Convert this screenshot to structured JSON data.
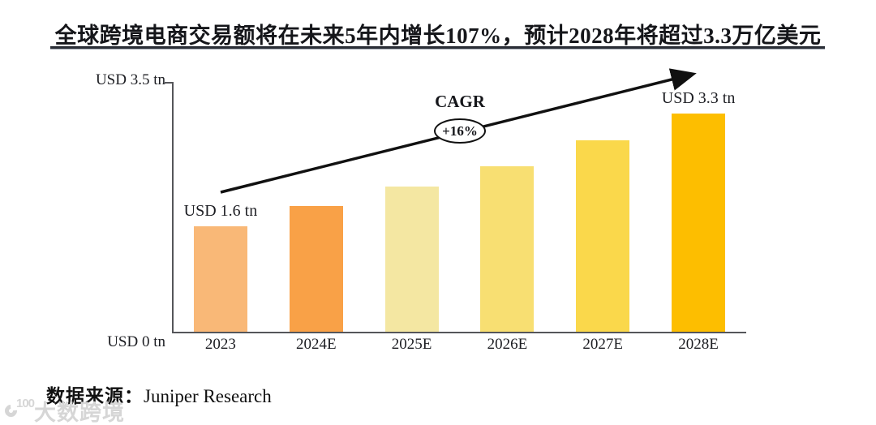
{
  "title": {
    "text": "全球跨境电商交易额将在未来5年内增长107%，预计2028年将超过3.3万亿美元"
  },
  "chart_data": {
    "type": "bar",
    "title": "全球跨境电商交易额将在未来5年内增长107%，预计2028年将超过3.3万亿美元",
    "categories": [
      "2023",
      "2024E",
      "2025E",
      "2026E",
      "2027E",
      "2028E"
    ],
    "values": [
      1.6,
      1.9,
      2.2,
      2.5,
      2.9,
      3.3
    ],
    "unit": "USD trillion",
    "ylim": [
      0,
      3.5
    ],
    "grid": false,
    "y_axis_top_label": "USD 3.5 tn",
    "y_axis_bottom_label": "USD 0 tn",
    "bar_labels": [
      "USD 1.6 tn",
      "",
      "",
      "",
      "",
      "USD 3.3 tn"
    ],
    "bar_colors": [
      "#F9B877",
      "#F9A147",
      "#F4E7A2",
      "#F8DF72",
      "#FAD84B",
      "#FDBE00"
    ],
    "annotation": {
      "label": "CAGR",
      "badge": "+16%"
    },
    "arrow_color": "#111111"
  },
  "source": {
    "prefix": "数据来源：",
    "name": "Juniper Research"
  },
  "watermark": {
    "logo": "100",
    "text": "大数跨境"
  }
}
